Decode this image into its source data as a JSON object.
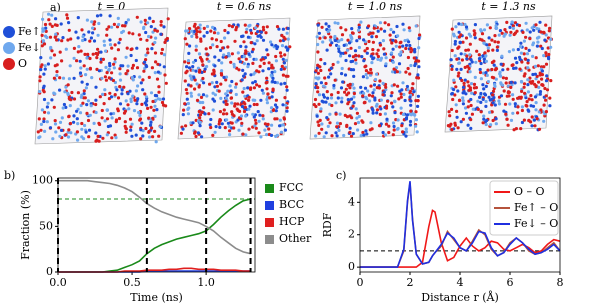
{
  "panel_a": {
    "label": "a)",
    "legend": [
      {
        "name": "Fe↑",
        "color": "#1f4fd8"
      },
      {
        "name": "Fe↓",
        "color": "#6fa8ee"
      },
      {
        "name": "O",
        "color": "#d81e1e"
      }
    ],
    "snapshots": [
      "t = 0",
      "t = 0.6 ns",
      "t = 1.0 ns",
      "t = 1.3 ns"
    ]
  },
  "chart_data": [
    {
      "type": "line",
      "label": "b)",
      "xlabel": "Time (ns)",
      "ylabel": "Fraction (%)",
      "x": [
        0,
        0.05,
        0.1,
        0.15,
        0.2,
        0.25,
        0.3,
        0.35,
        0.4,
        0.45,
        0.5,
        0.55,
        0.6,
        0.65,
        0.7,
        0.75,
        0.8,
        0.85,
        0.9,
        0.95,
        1.0,
        1.05,
        1.1,
        1.15,
        1.2,
        1.25,
        1.3
      ],
      "series": [
        {
          "name": "FCC",
          "color": "#1a8a1a",
          "values": [
            0,
            0,
            0,
            0,
            0,
            0,
            0,
            1,
            2,
            5,
            8,
            12,
            20,
            26,
            30,
            33,
            36,
            38,
            40,
            42,
            45,
            52,
            60,
            67,
            73,
            78,
            80
          ]
        },
        {
          "name": "BCC",
          "color": "#1f3fe0",
          "values": [
            0,
            0,
            0,
            0,
            0,
            0,
            0,
            0,
            0,
            0,
            0,
            0,
            1,
            1,
            1,
            1,
            1,
            1,
            1,
            1,
            1,
            1,
            1,
            1,
            1,
            1,
            1
          ]
        },
        {
          "name": "HCP",
          "color": "#e01f1f",
          "values": [
            0,
            0,
            0,
            0,
            0,
            0,
            0,
            0,
            0,
            1,
            1,
            1,
            2,
            2,
            2,
            3,
            3,
            4,
            4,
            3,
            3,
            3,
            2,
            2,
            2,
            1,
            1
          ]
        },
        {
          "name": "Other",
          "color": "#8c8c8c",
          "values": [
            100,
            100,
            100,
            100,
            100,
            99,
            98,
            97,
            95,
            92,
            88,
            82,
            75,
            70,
            66,
            63,
            60,
            58,
            56,
            54,
            50,
            45,
            38,
            32,
            26,
            22,
            20
          ]
        }
      ],
      "xlim": [
        0,
        1.33
      ],
      "ylim": [
        0,
        103
      ],
      "xticks": [
        {
          "value": 0,
          "label": "0.0"
        },
        0.5,
        {
          "value": 1,
          "label": "1.0"
        }
      ],
      "yticks": [
        0,
        50,
        100
      ],
      "vlines": [
        0,
        0.6,
        1.0,
        1.3
      ],
      "hline": 80,
      "legend": "outside right"
    },
    {
      "type": "line",
      "label": "c)",
      "xlabel": "Distance r (Å)",
      "ylabel": "RDF",
      "x": [
        0,
        1.5,
        1.75,
        1.9,
        2.0,
        2.1,
        2.25,
        2.5,
        2.75,
        2.9,
        3.0,
        3.25,
        3.5,
        3.75,
        4.0,
        4.25,
        4.5,
        4.75,
        5.0,
        5.25,
        5.5,
        5.75,
        6.0,
        6.25,
        6.5,
        6.75,
        7.0,
        7.25,
        7.5,
        7.75,
        8.0
      ],
      "series": [
        {
          "name": "O – O",
          "color": "#f01818",
          "values": [
            0,
            0,
            0,
            0,
            0,
            0,
            0,
            0.3,
            2.5,
            3.5,
            3.4,
            1.5,
            0.4,
            0.6,
            1.3,
            1.8,
            1.3,
            1.0,
            1.2,
            1.6,
            1.5,
            1.1,
            1.0,
            1.2,
            1.4,
            1.2,
            0.9,
            1.0,
            1.4,
            1.7,
            1.6
          ]
        },
        {
          "name": "Fe↑ – O",
          "color": "#b5533c",
          "values": [
            0,
            0,
            1.0,
            4.0,
            5.2,
            3.0,
            0.8,
            0.2,
            0.3,
            0.7,
            0.9,
            1.3,
            2.2,
            1.7,
            1.2,
            1.0,
            1.6,
            2.3,
            2.0,
            1.1,
            0.7,
            0.9,
            1.5,
            1.8,
            1.5,
            1.0,
            0.8,
            0.9,
            1.2,
            1.5,
            1.0
          ]
        },
        {
          "name": "Fe↓ – O",
          "color": "#1f2fe0",
          "values": [
            0,
            0,
            1.1,
            4.1,
            5.3,
            2.9,
            0.8,
            0.2,
            0.3,
            0.7,
            0.9,
            1.4,
            2.1,
            1.8,
            1.2,
            1.0,
            1.5,
            2.2,
            2.1,
            1.2,
            0.7,
            0.9,
            1.4,
            1.8,
            1.5,
            1.1,
            0.8,
            0.9,
            1.1,
            1.4,
            1.0
          ]
        }
      ],
      "xlim": [
        0,
        8
      ],
      "ylim": [
        -0.3,
        5.5
      ],
      "xticks": [
        0,
        2,
        4,
        6,
        8
      ],
      "yticks": [
        0,
        2,
        4
      ],
      "hline": 1,
      "legend": "upper right"
    }
  ]
}
